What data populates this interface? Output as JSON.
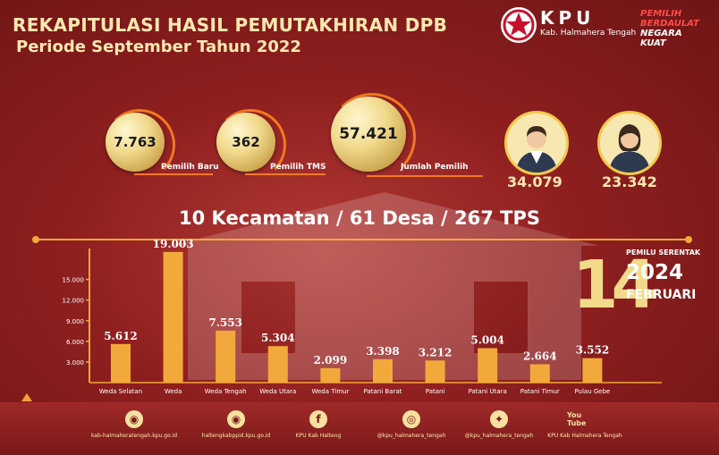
{
  "header": {
    "title": "REKAPITULASI HASIL PEMUTAKHIRAN DPB",
    "subtitle": "Periode September Tahun 2022"
  },
  "brand": {
    "kpu": "KPU",
    "region": "Kab. Halmahera Tengah",
    "slogan": [
      "PEMILIH",
      "BERDAULAT",
      "NEGARA",
      "KUAT"
    ]
  },
  "stats": {
    "pemilih_baru": {
      "value": "7.763",
      "label": "Pemilih Baru"
    },
    "pemilih_tms": {
      "value": "362",
      "label": "Pemilih TMS"
    },
    "jumlah_pemilih": {
      "value": "57.421",
      "label": "Jumlah Pemilih"
    },
    "male": {
      "value": "34.079",
      "icon": "male-voter-icon"
    },
    "female": {
      "value": "23.342",
      "icon": "female-voter-icon"
    }
  },
  "summary": "10 Kecamatan / 61 Desa / 267 TPS",
  "event": {
    "label": "PEMILU SERENTAK",
    "day": "14",
    "year": "2024",
    "month": "FEBRUARI"
  },
  "chart_data": {
    "type": "bar",
    "categories": [
      "Weda Selatan",
      "Weda",
      "Weda Tengah",
      "Weda Utara",
      "Weda Timur",
      "Patani Barat",
      "Patani",
      "Patani Utara",
      "Patani Timur",
      "Pulau Gebe"
    ],
    "values": [
      5612,
      19003,
      7553,
      5304,
      2099,
      3398,
      3212,
      5004,
      2664,
      3552
    ],
    "value_labels": [
      "5.612",
      "19.003",
      "7.553",
      "5.304",
      "2.099",
      "3.398",
      "3.212",
      "5.004",
      "2.664",
      "3.552"
    ],
    "yticks": [
      3000,
      6000,
      9000,
      12000,
      15000
    ],
    "ytick_labels": [
      "3.000",
      "6.000",
      "9.000",
      "12.000",
      "15.000"
    ],
    "ylim": [
      0,
      19500
    ],
    "title": "",
    "xlabel": "",
    "ylabel": "",
    "bar_color": "#f2a93b"
  },
  "footer": [
    {
      "icon": "kpu-web-icon",
      "glyph": "◉",
      "text": "kab-halmaheratengah.kpu.go.id"
    },
    {
      "icon": "ppid-web-icon",
      "glyph": "◉",
      "text": "haltengkabppid.kpu.go.id"
    },
    {
      "icon": "facebook-icon",
      "glyph": "f",
      "text": "KPU Kab Halteng"
    },
    {
      "icon": "instagram-icon",
      "glyph": "◎",
      "text": "@kpu_halmahera_tengah"
    },
    {
      "icon": "twitter-icon",
      "glyph": "✦",
      "text": "@kpu_halmahera_tengah"
    },
    {
      "icon": "youtube-icon",
      "glyph": "You Tube",
      "text": "KPU Kab Halmahera Tengah"
    }
  ],
  "colors": {
    "accent": "#f07a20",
    "gold": "#f2a93b",
    "background": "#8f1f1f"
  }
}
